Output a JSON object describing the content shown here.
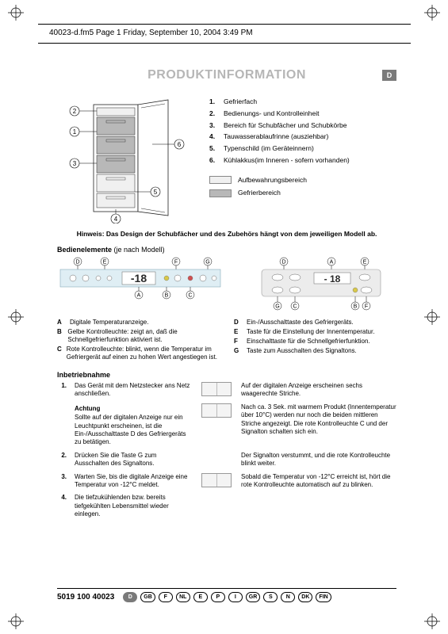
{
  "header_line": "40023-d.fm5  Page 1  Friday, September 10, 2004  3:49 PM",
  "title": "PRODUKTINFORMATION",
  "lang_badge": "D",
  "parts": [
    {
      "n": "1.",
      "t": "Gefrierfach"
    },
    {
      "n": "2.",
      "t": "Bedienungs- und Kontrolleinheit"
    },
    {
      "n": "3.",
      "t": "Bereich für Schubfächer und Schubkörbe"
    },
    {
      "n": "4.",
      "t": "Tauwasserablaufrinne (ausziehbar)"
    },
    {
      "n": "5.",
      "t": "Typenschild (im Geräteinnern)"
    },
    {
      "n": "6.",
      "t": "Kühlakkus(im Inneren - sofern vorhanden)"
    }
  ],
  "legend": {
    "a_label": "Aufbewahrungsbereich",
    "a_color": "#f0f0f0",
    "b_label": "Gefrierbereich",
    "b_color": "#b8b8b8"
  },
  "hinweis_bold": "Hinweis: Das Design der Schubfächer und des Zubehörs hängt von dem jeweiligen Modell ab.",
  "bedien_heading": "Bedienelemente",
  "bedien_note": "(je nach Modell)",
  "display_value": "-18",
  "controls_left": [
    {
      "l": "A",
      "t": "Digitale Temperaturanzeige."
    },
    {
      "l": "B",
      "t": "Gelbe Kontrolleuchte: zeigt an, daß die Schnellgefrierfunktion aktiviert ist."
    },
    {
      "l": "C",
      "t": "Rote Kontrolleuchte: blinkt, wenn die Temperatur im Gefriergerät auf einen zu hohen Wert angestiegen ist."
    }
  ],
  "controls_right": [
    {
      "l": "D",
      "t": "Ein-/Ausschalttaste des Gefriergeräts."
    },
    {
      "l": "E",
      "t": "Taste für die Einstellung der Innentemperatur."
    },
    {
      "l": "F",
      "t": "Einschalttaste für die Schnellgefrierfunktion."
    },
    {
      "l": "G",
      "t": "Taste zum Ausschalten des Signaltons."
    }
  ],
  "inbetrieb_heading": "Inbetriebnahme",
  "steps": [
    {
      "n": "1.",
      "left": "Das Gerät mit dem Netzstecker ans Netz anschließen.",
      "icon": true,
      "right": "Auf der digitalen Anzeige erscheinen sechs waagerechte Striche."
    },
    {
      "n": "",
      "left_bold": "Achtung",
      "left": "Sollte auf der digitalen Anzeige nur ein Leuchtpunkt erscheinen, ist die Ein-/Ausschalttaste D des Gefriergeräts zu betätigen.",
      "icon": true,
      "right": "Nach ca. 3 Sek. mit warmem Produkt (Innentemperatur über 10°C) werden nur noch die beiden mittleren Striche angezeigt. Die rote Kontrolleuchte C und der Signalton schalten sich ein."
    },
    {
      "n": "2.",
      "left": "Drücken Sie die Taste G zum Ausschalten des Signaltons.",
      "icon": false,
      "right": "Der Signalton verstummt, und die rote Kontrolleuchte blinkt weiter."
    },
    {
      "n": "3.",
      "left": "Warten Sie, bis die digitale Anzeige eine Temperatur von -12°C meldet.",
      "icon": true,
      "right": "Sobald die Temperatur von -12°C erreicht ist, hört die rote Kontrolleuchte automatisch auf zu blinken."
    },
    {
      "n": "4.",
      "left": "Die tiefzukühlenden bzw. bereits tiefgekühlten Lebensmittel wieder einlegen.",
      "icon": false,
      "right": ""
    }
  ],
  "part_number": "5019 100 40023",
  "langs": [
    "D",
    "GB",
    "F",
    "NL",
    "E",
    "P",
    "I",
    "GR",
    "S",
    "N",
    "DK",
    "FIN"
  ],
  "active_lang": "D",
  "diagram_callouts": [
    "1",
    "2",
    "3",
    "4",
    "5",
    "6"
  ],
  "panel_left_labels": [
    "D",
    "E",
    "F",
    "G",
    "B",
    "A",
    "C"
  ],
  "panel_right_labels": [
    "D",
    "A",
    "E",
    "G",
    "C",
    "B",
    "F"
  ],
  "colors": {
    "title_gray": "#b6b6b6",
    "panel_bg": "#dfeef4",
    "digit_segment": "#2a2a2a",
    "line": "#222222"
  }
}
